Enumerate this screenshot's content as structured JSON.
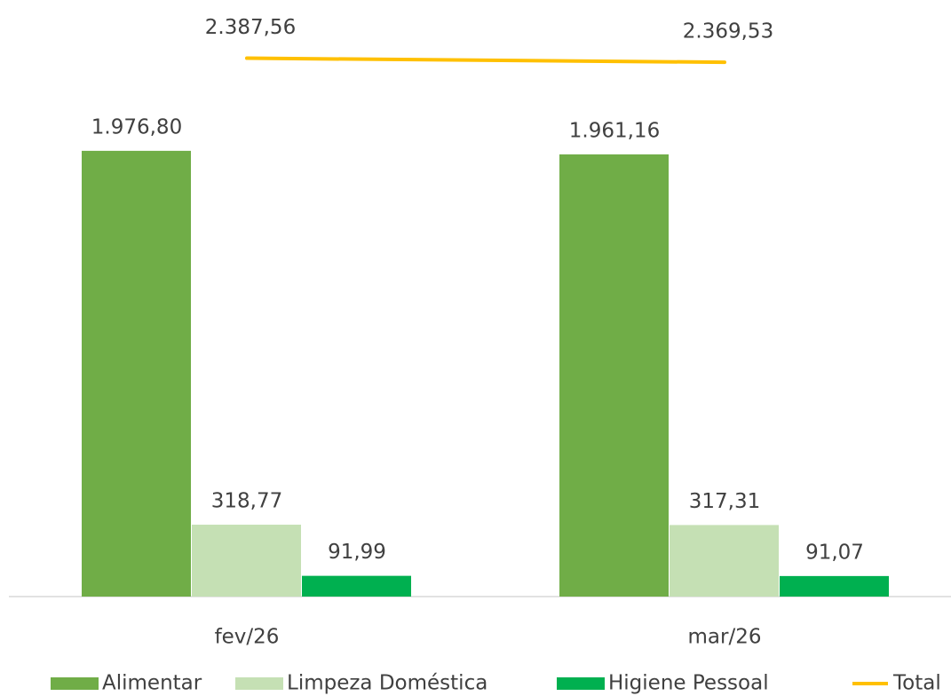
{
  "chart_data": {
    "type": "bar",
    "categories": [
      "fev/26",
      "mar/26"
    ],
    "series": [
      {
        "name": "Alimentar",
        "type": "bar",
        "color": "#70ad47",
        "values": [
          1976.8,
          1961.16
        ],
        "value_labels": [
          "1.976,80",
          "1.961,16"
        ]
      },
      {
        "name": "Limpeza Doméstica",
        "type": "bar",
        "color": "#c5e0b4",
        "values": [
          318.77,
          317.31
        ],
        "value_labels": [
          "318,77",
          "317,31"
        ]
      },
      {
        "name": "Higiene Pessoal",
        "type": "bar",
        "color": "#00b050",
        "values": [
          91.99,
          91.07
        ],
        "value_labels": [
          "91,99",
          "91,07"
        ]
      },
      {
        "name": "Total",
        "type": "line",
        "color": "#ffc000",
        "values": [
          2387.56,
          2369.53
        ],
        "value_labels": [
          "2.387,56",
          "2.369,53"
        ]
      }
    ],
    "legend": "bottom"
  }
}
